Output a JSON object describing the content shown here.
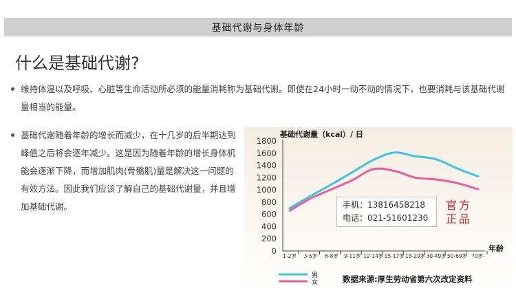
{
  "header": {
    "title": "基础代谢与身体年龄"
  },
  "section": {
    "title": "什么是基础代谢?"
  },
  "paragraphs": [
    "维持体温以及呼吸、心脏等生命活动所必须的能量消耗称为基础代谢。即使在24小时一动不动的情况下，也要消耗与该基础代谢量相当的能量。",
    "基础代谢随着年龄的增长而减少，在十几岁的后半期达到峰值之后将会逐年减少。这是因为随着年龄的增长身体机能会逐渐下降，而增加肌肉(骨骼肌)量是解决这一问题的有效方法。因此我们应该了解自己的基础代谢量，并且增加基础代谢。"
  ],
  "watermark": {
    "phone": "手机：13816458218",
    "tel": "电话：021-51601230"
  },
  "seal": {
    "line1": "官方",
    "line2": "正品"
  },
  "colors": {
    "male": "#3ec6de",
    "female": "#ef5c9c"
  },
  "chart_data": {
    "type": "line",
    "title": "基础代谢量（kcal）/ 日",
    "xlabel": "年龄",
    "ylabel": "",
    "categories": [
      "1-2岁",
      "3-5岁",
      "6-8岁",
      "9-11岁",
      "12-14岁",
      "15-17岁",
      "18-29岁",
      "30-49岁",
      "50-69岁",
      "70岁-"
    ],
    "ylim": [
      0,
      1800
    ],
    "yticks": [
      0,
      200,
      400,
      600,
      800,
      1000,
      1200,
      1400,
      1600,
      1800
    ],
    "series": [
      {
        "name": "男",
        "values": [
          700,
          900,
          1090,
          1290,
          1490,
          1610,
          1550,
          1500,
          1350,
          1220
        ]
      },
      {
        "name": "女",
        "values": [
          660,
          860,
          1010,
          1160,
          1340,
          1310,
          1200,
          1170,
          1110,
          1010
        ]
      }
    ],
    "legend_position": "bottom-left",
    "source": "数据来源:厚生劳动省第六次改定资料"
  }
}
